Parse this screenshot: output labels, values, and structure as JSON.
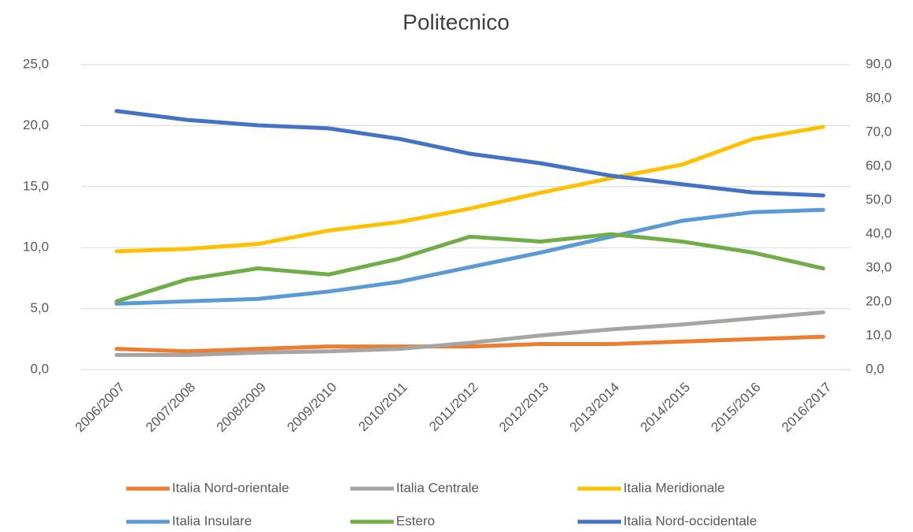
{
  "chart_data": {
    "type": "line",
    "title": "Politecnico",
    "categories": [
      "2006/2007",
      "2007/2008",
      "2008/2009",
      "2009/2010",
      "2010/2011",
      "2011/2012",
      "2012/2013",
      "2013/2014",
      "2014/2015",
      "2015/2016",
      "2016/2017"
    ],
    "series": [
      {
        "name": "Italia Nord-orientale",
        "color": "#ed7d31",
        "values": [
          1.7,
          1.5,
          1.7,
          1.9,
          1.9,
          1.9,
          2.1,
          2.1,
          2.3,
          2.5,
          2.7
        ]
      },
      {
        "name": "Italia Centrale",
        "color": "#a5a5a5",
        "values": [
          1.2,
          1.2,
          1.4,
          1.5,
          1.7,
          2.2,
          2.8,
          3.3,
          3.7,
          4.2,
          4.7
        ]
      },
      {
        "name": "Italia Meridionale",
        "color": "#ffc000",
        "values": [
          9.7,
          9.9,
          10.3,
          11.4,
          12.1,
          13.2,
          14.5,
          15.7,
          16.8,
          18.9,
          19.9
        ]
      },
      {
        "name": "Italia Insulare",
        "color": "#5b9bd5",
        "values": [
          5.4,
          5.6,
          5.8,
          6.4,
          7.2,
          8.4,
          9.6,
          10.9,
          12.2,
          12.9,
          13.1
        ]
      },
      {
        "name": "Estero",
        "color": "#70ad47",
        "values": [
          5.6,
          7.4,
          8.3,
          7.8,
          9.1,
          10.9,
          10.5,
          11.1,
          10.5,
          9.6,
          8.3
        ]
      },
      {
        "name": "Italia Nord-occidentale",
        "color": "#4472c4",
        "axis": "y2",
        "values": [
          76.3,
          73.7,
          72.1,
          71.2,
          68.1,
          63.7,
          60.9,
          57.2,
          54.7,
          52.3,
          51.4
        ]
      }
    ],
    "ylim": [
      0,
      25
    ],
    "yticks": [
      {
        "value": 0,
        "label": "0,0"
      },
      {
        "value": 5,
        "label": "5,0"
      },
      {
        "value": 10,
        "label": "10,0"
      },
      {
        "value": 15,
        "label": "15,0"
      },
      {
        "value": 20,
        "label": "20,0"
      },
      {
        "value": 25,
        "label": "25,0"
      }
    ],
    "y2lim": [
      0,
      90
    ],
    "y2ticks": [
      {
        "value": 0,
        "label": "0,0"
      },
      {
        "value": 10,
        "label": "10,0"
      },
      {
        "value": 20,
        "label": "20,0"
      },
      {
        "value": 30,
        "label": "30,0"
      },
      {
        "value": 40,
        "label": "40,0"
      },
      {
        "value": 50,
        "label": "50,0"
      },
      {
        "value": 60,
        "label": "60,0"
      },
      {
        "value": 70,
        "label": "70,0"
      },
      {
        "value": 80,
        "label": "80,0"
      },
      {
        "value": 90,
        "label": "90,0"
      }
    ],
    "grid": true,
    "legend": "bottom"
  }
}
